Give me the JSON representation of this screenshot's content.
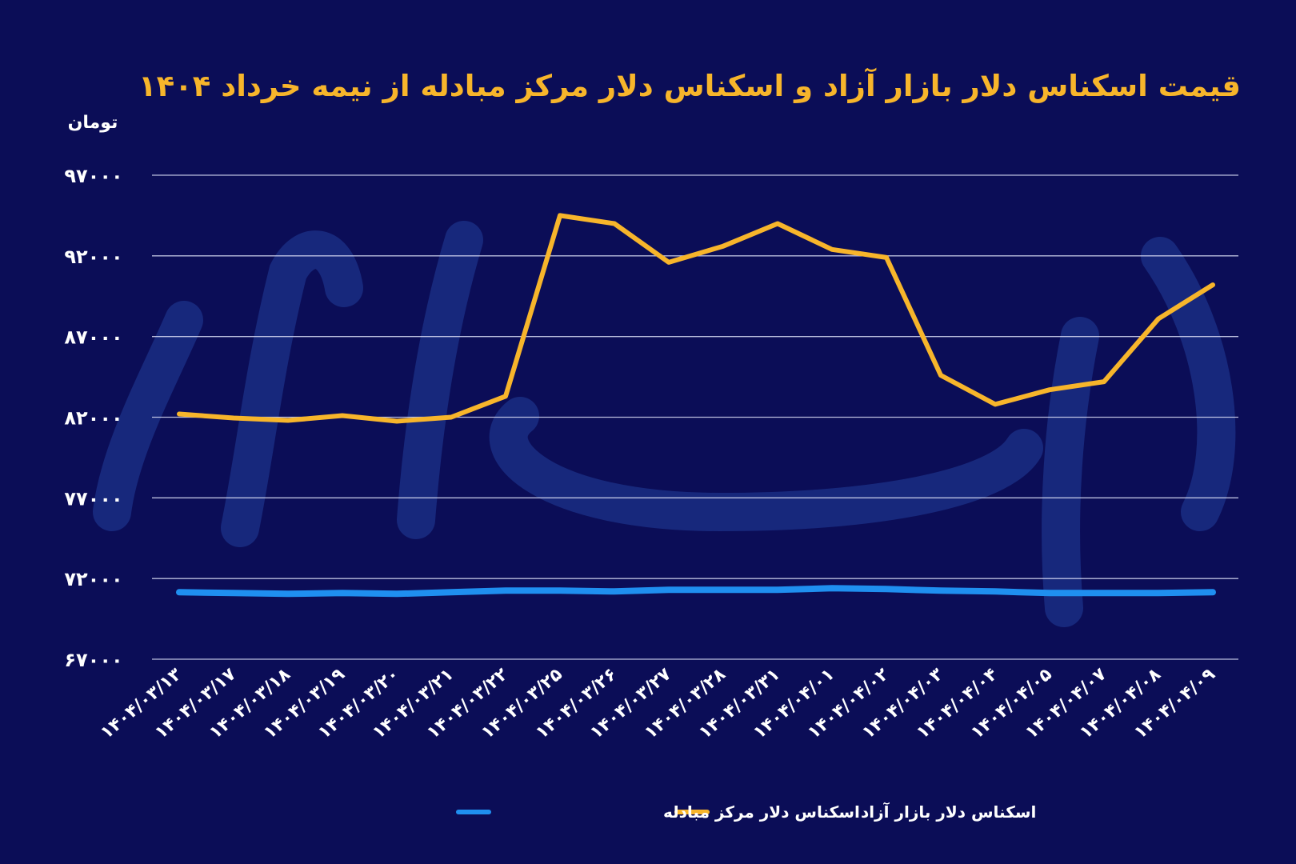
{
  "chart_data": {
    "type": "line",
    "title": "قیمت اسکناس دلار بازار آزاد و اسکناس دلار مرکز مبادله از نیمه خرداد ۱۴۰۴",
    "unit_label": "تومان",
    "ylim": [
      67000,
      97000
    ],
    "y_ticks": [
      97000,
      92000,
      87000,
      82000,
      77000,
      72000,
      67000
    ],
    "y_tick_labels": [
      "۹۷۰۰۰",
      "۹۲۰۰۰",
      "۸۷۰۰۰",
      "۸۲۰۰۰",
      "۷۷۰۰۰",
      "۷۲۰۰۰",
      "۶۷۰۰۰"
    ],
    "grid": true,
    "legend_position": "bottom-center",
    "categories": [
      "۱۴۰۴/۰۳/۱۳",
      "۱۴۰۴/۰۳/۱۷",
      "۱۴۰۴/۰۳/۱۸",
      "۱۴۰۴/۰۳/۱۹",
      "۱۴۰۴/۰۳/۲۰",
      "۱۴۰۴/۰۳/۲۱",
      "۱۴۰۴/۰۳/۲۲",
      "۱۴۰۴/۰۳/۲۵",
      "۱۴۰۴/۰۳/۲۶",
      "۱۴۰۴/۰۳/۲۷",
      "۱۴۰۴/۰۳/۲۸",
      "۱۴۰۴/۰۳/۳۱",
      "۱۴۰۴/۰۴/۰۱",
      "۱۴۰۴/۰۴/۰۲",
      "۱۴۰۴/۰۴/۰۳",
      "۱۴۰۴/۰۴/۰۴",
      "۱۴۰۴/۰۴/۰۵",
      "۱۴۰۴/۰۴/۰۷",
      "۱۴۰۴/۰۴/۰۸",
      "۱۴۰۴/۰۴/۰۹"
    ],
    "series": [
      {
        "name": "اسکناس دلار بازار آزاد",
        "color": "#f7b52b",
        "values": [
          82200,
          81950,
          81800,
          82100,
          81750,
          82000,
          83300,
          94500,
          94000,
          91600,
          92600,
          94000,
          92400,
          91900,
          84600,
          82800,
          83700,
          84200,
          88100,
          90200
        ]
      },
      {
        "name": "اسکناس دلار مرکز مبادله",
        "color": "#1f8ff0",
        "values": [
          71150,
          71100,
          71050,
          71100,
          71050,
          71150,
          71250,
          71250,
          71200,
          71300,
          71300,
          71300,
          71400,
          71350,
          71250,
          71200,
          71100,
          71100,
          71100,
          71150
        ]
      }
    ]
  }
}
